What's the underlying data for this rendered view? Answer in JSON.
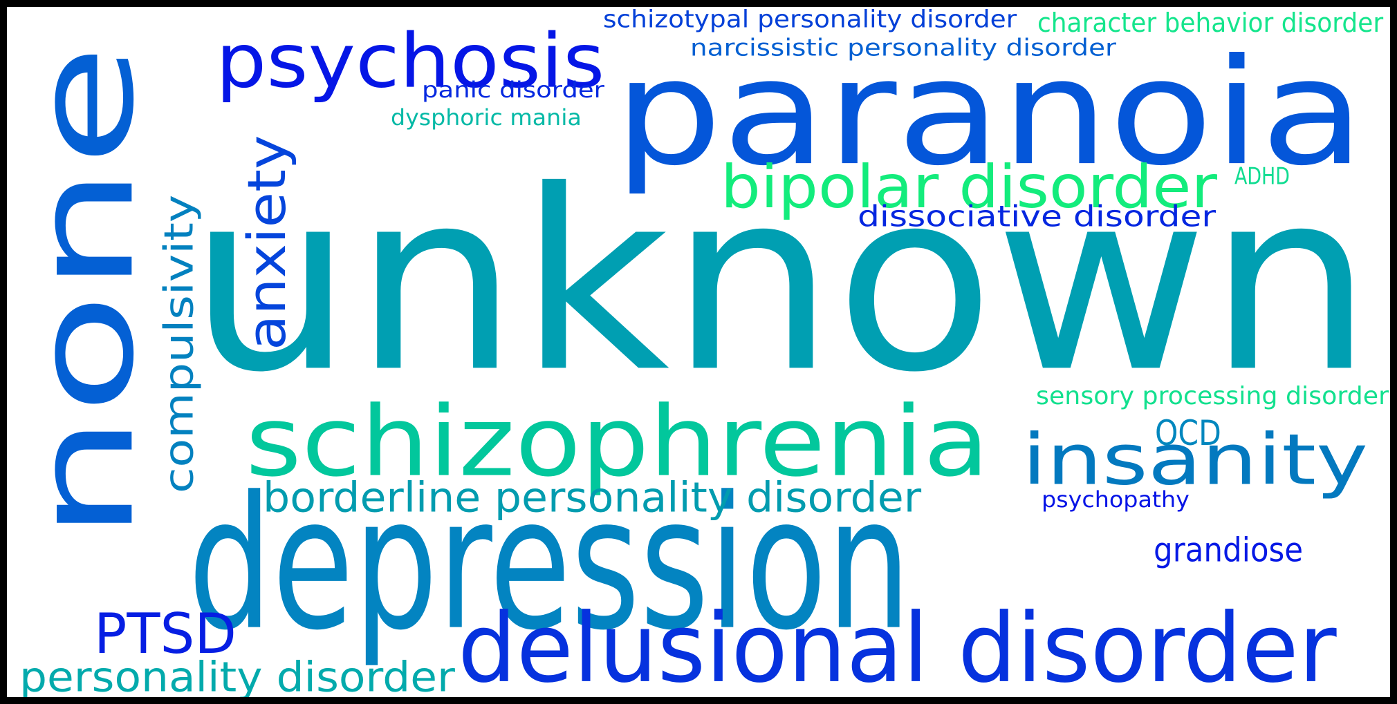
{
  "cloud": {
    "background": "#ffffff",
    "frame": "#000000",
    "words": [
      {
        "id": "unknown",
        "text": "unknown",
        "color": "#009fb2",
        "orientation": "horizontal"
      },
      {
        "id": "none",
        "text": "none",
        "color": "#0460d4",
        "orientation": "vertical"
      },
      {
        "id": "depression",
        "text": "depression",
        "color": "#0384c1",
        "orientation": "horizontal"
      },
      {
        "id": "paranoia",
        "text": "paranoia",
        "color": "#0456d9",
        "orientation": "horizontal"
      },
      {
        "id": "schizophrenia",
        "text": "schizophrenia",
        "color": "#02c79c",
        "orientation": "horizontal"
      },
      {
        "id": "delusional-disorder",
        "text": "delusional disorder",
        "color": "#0632de",
        "orientation": "horizontal"
      },
      {
        "id": "psychosis",
        "text": "psychosis",
        "color": "#0516e6",
        "orientation": "horizontal"
      },
      {
        "id": "insanity",
        "text": "insanity",
        "color": "#0379bf",
        "orientation": "horizontal"
      },
      {
        "id": "bipolar-disorder",
        "text": "bipolar disorder",
        "color": "#13ec7c",
        "orientation": "horizontal"
      },
      {
        "id": "anxiety",
        "text": "anxiety",
        "color": "#0545dc",
        "orientation": "vertical"
      },
      {
        "id": "borderline-personality-disorder",
        "text": "borderline personality disorder",
        "color": "#029caf",
        "orientation": "horizontal"
      },
      {
        "id": "compulsivity",
        "text": "compulsivity",
        "color": "#0381bf",
        "orientation": "vertical"
      },
      {
        "id": "ptsd",
        "text": "PTSD",
        "color": "#061ee3",
        "orientation": "horizontal"
      },
      {
        "id": "personality-disorder",
        "text": "personality disorder",
        "color": "#03aaac",
        "orientation": "horizontal"
      },
      {
        "id": "dissociative-disorder",
        "text": "dissociative disorder",
        "color": "#0527e0",
        "orientation": "horizontal"
      },
      {
        "id": "ocd",
        "text": "OCD",
        "color": "#0287be",
        "orientation": "horizontal"
      },
      {
        "id": "grandiose",
        "text": "grandiose",
        "color": "#0619e5",
        "orientation": "horizontal"
      },
      {
        "id": "schizotypal-personality-disorder",
        "text": "schizotypal personality disorder",
        "color": "#0440d8",
        "orientation": "horizontal"
      },
      {
        "id": "character-behavior-disorder",
        "text": "character behavior disorder",
        "color": "#14e58c",
        "orientation": "horizontal"
      },
      {
        "id": "narcissistic-personality-disorder",
        "text": "narcissistic personality disorder",
        "color": "#0460d2",
        "orientation": "horizontal"
      },
      {
        "id": "panic-disorder",
        "text": "panic disorder",
        "color": "#0629e0",
        "orientation": "horizontal"
      },
      {
        "id": "dysphoric-mania",
        "text": "dysphoric mania",
        "color": "#04b9a6",
        "orientation": "horizontal"
      },
      {
        "id": "adhd",
        "text": "ADHD",
        "color": "#10dc91",
        "orientation": "horizontal"
      },
      {
        "id": "sensory-processing-disorder",
        "text": "sensory processing disorder",
        "color": "#12e08e",
        "orientation": "horizontal"
      },
      {
        "id": "psychopathy",
        "text": "psychopathy",
        "color": "#0614e6",
        "orientation": "horizontal"
      }
    ]
  }
}
